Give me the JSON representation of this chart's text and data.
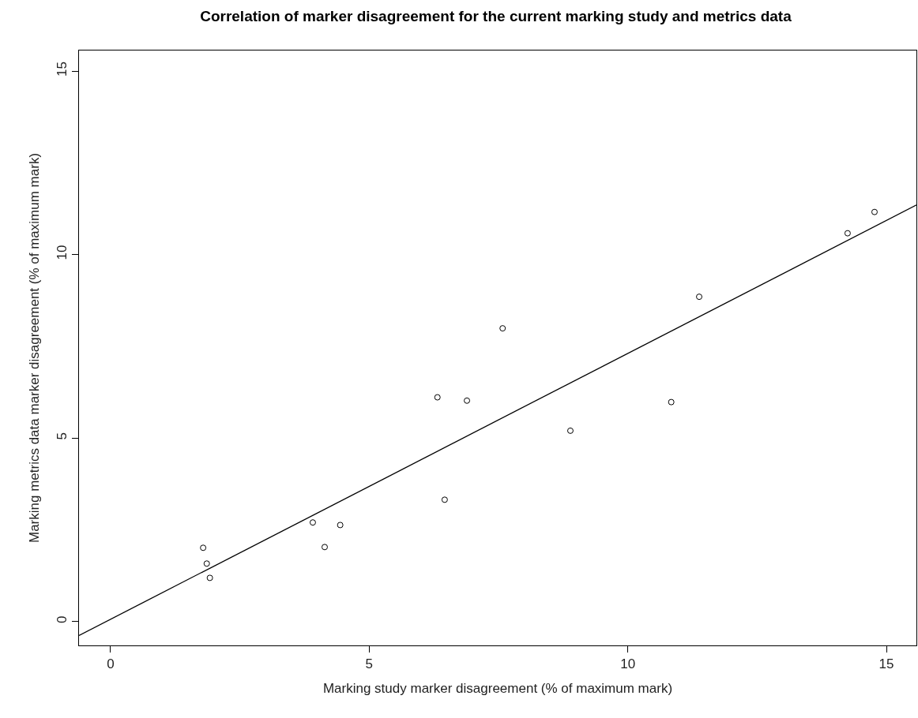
{
  "chart_data": {
    "type": "scatter",
    "title": "Correlation of marker disagreement for the current marking study and metrics data",
    "xlabel": "Marking study marker disagreement (% of maximum mark)",
    "ylabel": "Marking metrics data marker disagreement (% of maximum mark)",
    "series": [
      {
        "color": "#000000",
        "marker": "circle",
        "x": [
          1.79,
          1.86,
          1.92,
          3.91,
          4.14,
          4.44,
          6.32,
          6.46,
          6.89,
          7.58,
          8.89,
          10.84,
          11.38,
          14.25,
          14.77
        ],
        "values": [
          2.01,
          1.58,
          1.19,
          2.7,
          2.03,
          2.63,
          6.11,
          3.32,
          6.02,
          7.99,
          5.2,
          5.98,
          8.85,
          10.58,
          11.16
        ]
      },
      {
        "type": "line",
        "color": "#000000",
        "line_style": "solid",
        "x": [
          -0.61,
          15.58
        ],
        "values": [
          -0.38,
          11.35
        ]
      }
    ],
    "xlim": [
      -0.61,
      15.58
    ],
    "ylim": [
      -0.65,
      15.56
    ],
    "xticks": [
      0,
      5,
      10,
      15
    ],
    "yticks": [
      0,
      5,
      10,
      15
    ]
  }
}
